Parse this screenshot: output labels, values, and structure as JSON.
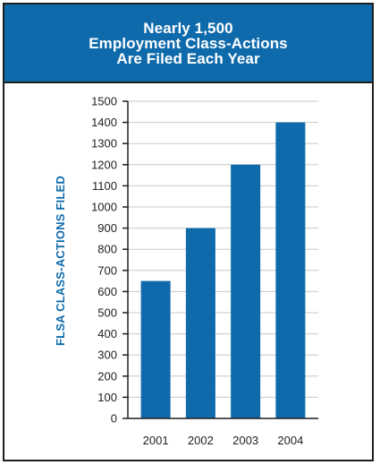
{
  "chart_data": {
    "type": "bar",
    "title_lines": [
      "Nearly 1,500",
      "Employment Class-Actions",
      "Are Filed Each Year"
    ],
    "categories": [
      "2001",
      "2002",
      "2003",
      "2004"
    ],
    "values": [
      650,
      900,
      1200,
      1400
    ],
    "xlabel": "",
    "ylabel": "FLSA CLASS-ACTIONS FILED",
    "ylim": [
      0,
      1500
    ],
    "yticks": [
      "0",
      "100",
      "200",
      "300",
      "400",
      "500",
      "600",
      "700",
      "800",
      "900",
      "1000",
      "1100",
      "1200",
      "1300",
      "1400",
      "1500"
    ],
    "grid": true,
    "legend": "none",
    "colors": {
      "bar": "#0f6aab",
      "banner": "#0f6aab",
      "axis": "#1f1f1f",
      "grid": "#c8c8c8"
    }
  }
}
